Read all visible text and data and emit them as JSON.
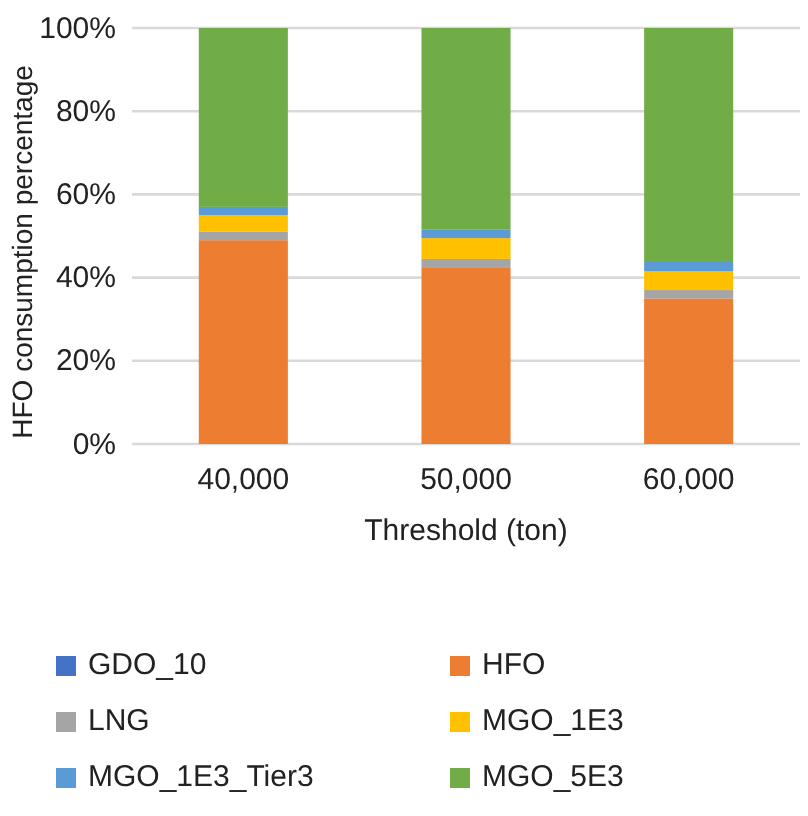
{
  "chart_data": {
    "type": "bar",
    "stacked": true,
    "xlabel": "Threshold (ton)",
    "ylabel": "HFO consumption percentage",
    "categories": [
      "40,000",
      "50,000",
      "60,000"
    ],
    "series": [
      {
        "name": "GDO_10",
        "color": "#4472c4",
        "values": [
          0,
          0,
          0
        ]
      },
      {
        "name": "HFO",
        "color": "#ed7d31",
        "values": [
          49,
          42.5,
          35
        ]
      },
      {
        "name": "LNG",
        "color": "#a5a5a5",
        "values": [
          2,
          2,
          2
        ]
      },
      {
        "name": "MGO_1E3",
        "color": "#ffc000",
        "values": [
          4,
          5,
          4.5
        ]
      },
      {
        "name": "MGO_1E3_Tier3",
        "color": "#5b9bd5",
        "values": [
          2,
          2,
          2.5
        ]
      },
      {
        "name": "MGO_5E3",
        "color": "#70ad47",
        "values": [
          43,
          48.5,
          56
        ]
      }
    ],
    "ylim": [
      0,
      100
    ],
    "yticks": [
      {
        "value": 0,
        "label": "0%"
      },
      {
        "value": 20,
        "label": "20%"
      },
      {
        "value": 40,
        "label": "40%"
      },
      {
        "value": 60,
        "label": "60%"
      },
      {
        "value": 80,
        "label": "80%"
      },
      {
        "value": 100,
        "label": "100%"
      }
    ],
    "grid": "y",
    "legend": "bottom"
  }
}
